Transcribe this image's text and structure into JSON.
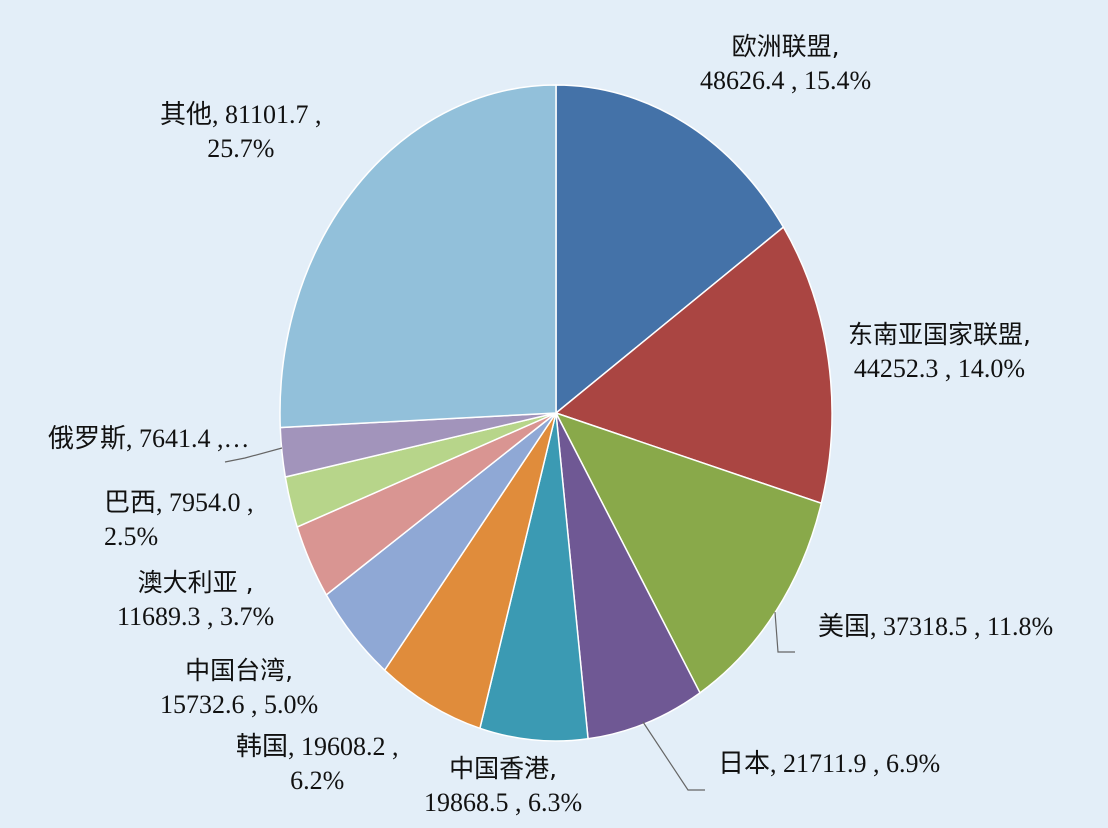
{
  "chart_data": {
    "type": "pie",
    "title": "",
    "slices": [
      {
        "label": "欧洲联盟",
        "value": 48626.4,
        "percent": "15.4%",
        "color": "#4472a8",
        "label_parts": [
          "欧洲联盟,",
          "48626.4 , 15.4%"
        ]
      },
      {
        "label": "东南亚国家联盟",
        "value": 44252.3,
        "percent": "14.0%",
        "color": "#aa4542",
        "label_parts": [
          "东南亚国家联盟,",
          "44252.3 , 14.0%"
        ]
      },
      {
        "label": "美国",
        "value": 37318.5,
        "percent": "11.8%",
        "color": "#89a94a",
        "label_parts": [
          "美国, 37318.5 , 11.8%"
        ]
      },
      {
        "label": "日本",
        "value": 21711.9,
        "percent": "6.9%",
        "color": "#6f5894",
        "label_parts": [
          "日本, 21711.9 , 6.9%"
        ]
      },
      {
        "label": "中国香港",
        "value": 19868.5,
        "percent": "6.3%",
        "color": "#3b9ab3",
        "label_parts": [
          "中国香港,",
          "19868.5 , 6.3%"
        ]
      },
      {
        "label": "韩国",
        "value": 19608.2,
        "percent": "6.2%",
        "color": "#e08c3b",
        "label_parts": [
          "韩国, 19608.2 ,",
          "6.2%"
        ]
      },
      {
        "label": "中国台湾",
        "value": 15732.6,
        "percent": "5.0%",
        "color": "#8fa8d5",
        "label_parts": [
          "中国台湾,",
          "15732.6 , 5.0%"
        ]
      },
      {
        "label": "澳大利亚",
        "value": 11689.3,
        "percent": "3.7%",
        "color": "#d99592",
        "label_parts": [
          "澳大利亚 ,",
          "11689.3 , 3.7%"
        ]
      },
      {
        "label": "巴西",
        "value": 7954.0,
        "percent": "2.5%",
        "color": "#b7d58a",
        "label_parts": [
          "巴西, 7954.0 ,",
          "2.5%"
        ]
      },
      {
        "label": "俄罗斯",
        "value": 7641.4,
        "percent": "",
        "color": "#a294bb",
        "label_parts": [
          "俄罗斯, 7641.4 ,…"
        ]
      },
      {
        "label": "其他",
        "value": 81101.7,
        "percent": "25.7%",
        "color": "#92c0da",
        "label_parts": [
          "其他, 81101.7 ,",
          "25.7%"
        ]
      }
    ]
  }
}
